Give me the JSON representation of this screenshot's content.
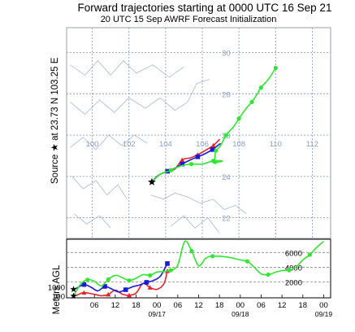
{
  "title": "Forward trajectories starting at 0000 UTC 16 Sep 21",
  "subtitle": "20 UTC 15 Sep    AWRF  Forecast Initialization",
  "source_label": "Source ★ at    23.73 N  103.25 E",
  "colors": {
    "red": "#e8232a",
    "blue": "#1a1ad8",
    "green": "#2ee82e",
    "grid": "#8aa0c8",
    "border": "#9aa0ac",
    "black": "#000000"
  },
  "chart_data": [
    {
      "type": "line",
      "title": "Forward trajectories starting at 0000 UTC 16 Sep 21",
      "subtitle": "20 UTC 15 Sep    AWRF  Forecast Initialization",
      "xlim": [
        98.6,
        113.0
      ],
      "ylim": [
        21.0,
        31.2
      ],
      "lon_ticks": [
        100,
        102,
        104,
        106,
        108,
        110,
        112
      ],
      "lat_ticks": [
        22,
        24,
        26,
        28,
        30
      ],
      "grid": true,
      "source": {
        "lat": 23.73,
        "lon": 103.25
      },
      "series": [
        {
          "color": "red",
          "points": [
            [
              103.25,
              23.73
            ],
            [
              103.6,
              24.05
            ],
            [
              104.1,
              24.25
            ],
            [
              104.5,
              24.35
            ],
            [
              104.9,
              24.8
            ],
            [
              105.35,
              24.9
            ],
            [
              105.75,
              25.05
            ],
            [
              106.15,
              25.25
            ],
            [
              106.6,
              25.5
            ],
            [
              106.95,
              25.8
            ]
          ]
        },
        {
          "color": "blue",
          "points": [
            [
              103.25,
              23.73
            ],
            [
              103.6,
              24.05
            ],
            [
              104.1,
              24.25
            ],
            [
              104.5,
              24.4
            ],
            [
              104.9,
              24.6
            ],
            [
              105.35,
              24.8
            ],
            [
              105.75,
              24.95
            ],
            [
              106.15,
              25.1
            ],
            [
              106.55,
              25.3
            ],
            [
              107.0,
              25.6
            ]
          ]
        },
        {
          "color": "green",
          "points": [
            [
              103.25,
              23.73
            ],
            [
              103.7,
              24.1
            ],
            [
              104.3,
              24.3
            ],
            [
              104.8,
              24.5
            ],
            [
              105.4,
              24.6
            ],
            [
              106.0,
              24.6
            ],
            [
              106.6,
              24.75
            ],
            [
              107.1,
              24.75
            ],
            [
              106.7,
              24.7
            ],
            [
              106.7,
              25.0
            ],
            [
              106.75,
              25.25
            ],
            [
              107.0,
              25.5
            ],
            [
              107.3,
              26.0
            ],
            [
              107.7,
              26.4
            ],
            [
              108.0,
              26.8
            ],
            [
              108.4,
              27.3
            ],
            [
              108.7,
              27.6
            ],
            [
              109.0,
              28.0
            ],
            [
              109.2,
              28.3
            ],
            [
              109.6,
              28.7
            ],
            [
              110.0,
              29.25
            ]
          ]
        }
      ]
    },
    {
      "type": "line",
      "xlabel": "",
      "ylabel": "Meters AGL",
      "ylim": [
        -150,
        7800
      ],
      "right_ticks": [
        2000,
        4000,
        6000
      ],
      "left_ticks": [
        100,
        1000
      ],
      "time_ticks": [
        "06",
        "12",
        "18",
        "00",
        "06",
        "12",
        "18",
        "00",
        "06",
        "12",
        "18",
        "00"
      ],
      "date_labels": [
        {
          "hour": 24,
          "text": "09/17"
        },
        {
          "hour": 48,
          "text": "09/18"
        },
        {
          "hour": 72,
          "text": "09/19"
        }
      ],
      "series": [
        {
          "color": "red",
          "points": [
            [
              0,
              100
            ],
            [
              1,
              220
            ],
            [
              3,
              550
            ],
            [
              6,
              330
            ],
            [
              8,
              140
            ],
            [
              10,
              300
            ],
            [
              12,
              900
            ],
            [
              14,
              350
            ],
            [
              16,
              200
            ],
            [
              18,
              500
            ],
            [
              20,
              1800
            ],
            [
              22,
              1250
            ],
            [
              24,
              1000
            ],
            [
              26,
              1750
            ],
            [
              27,
              3500
            ]
          ]
        },
        {
          "color": "blue",
          "points": [
            [
              0,
              1000
            ],
            [
              1,
              1200
            ],
            [
              3,
              1650
            ],
            [
              5,
              1300
            ],
            [
              7,
              800
            ],
            [
              9,
              1400
            ],
            [
              11,
              1050
            ],
            [
              13,
              650
            ],
            [
              15,
              950
            ],
            [
              17,
              1350
            ],
            [
              19,
              1600
            ],
            [
              21,
              1950
            ],
            [
              23,
              2200
            ],
            [
              25,
              2800
            ],
            [
              27,
              4500
            ]
          ]
        },
        {
          "color": "green",
          "points": [
            [
              0,
              100
            ],
            [
              2,
              1700
            ],
            [
              4,
              2300
            ],
            [
              6,
              2100
            ],
            [
              8,
              1450
            ],
            [
              10,
              2350
            ],
            [
              12,
              2900
            ],
            [
              14,
              2600
            ],
            [
              16,
              2200
            ],
            [
              18,
              2500
            ],
            [
              20,
              3000
            ],
            [
              22,
              2900
            ],
            [
              24,
              3350
            ],
            [
              26,
              3400
            ],
            [
              28,
              3600
            ],
            [
              30,
              4300
            ],
            [
              32,
              7500
            ],
            [
              34,
              6200
            ],
            [
              36,
              4200
            ],
            [
              38,
              5200
            ],
            [
              40,
              5500
            ],
            [
              44,
              5400
            ],
            [
              48,
              5000
            ],
            [
              50,
              4800
            ],
            [
              52,
              4000
            ],
            [
              54,
              3100
            ],
            [
              56,
              3000
            ],
            [
              58,
              3300
            ],
            [
              60,
              3550
            ],
            [
              62,
              3600
            ],
            [
              64,
              4000
            ],
            [
              66,
              5000
            ],
            [
              68,
              5700
            ],
            [
              70,
              6700
            ],
            [
              72,
              7500
            ]
          ]
        }
      ]
    }
  ]
}
